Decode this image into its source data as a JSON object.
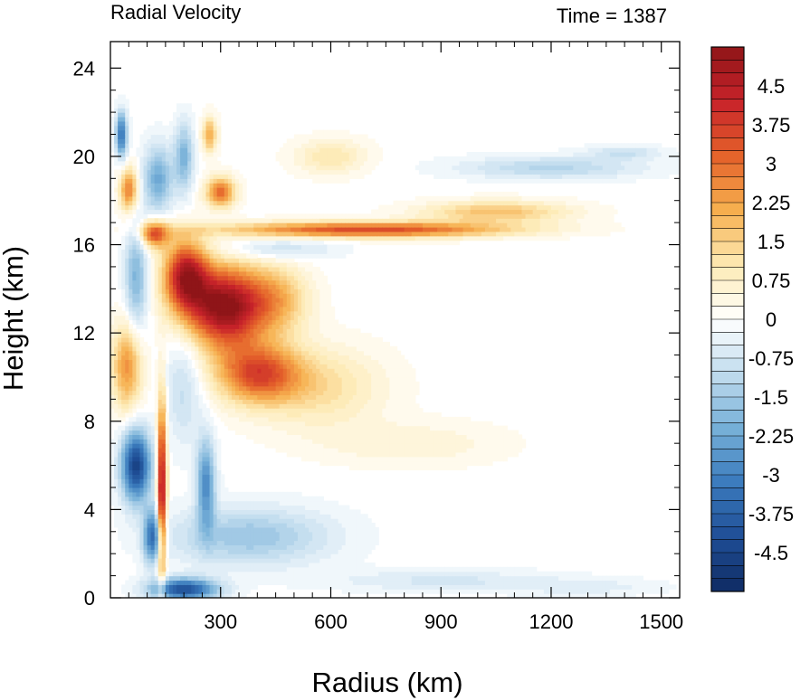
{
  "chart_data": {
    "type": "heatmap",
    "title": "Radial Velocity",
    "subtitle": "Time = 1387",
    "xlabel": "Radius (km)",
    "ylabel": "Height (km)",
    "xlim": [
      0,
      1550
    ],
    "ylim": [
      0,
      25.2
    ],
    "xticks": [
      300,
      600,
      900,
      1200,
      1500
    ],
    "yticks": [
      0,
      4,
      8,
      12,
      16,
      20,
      24
    ],
    "colorbar": {
      "min": -5.25,
      "max": 5.25,
      "step": 0.25,
      "tick_labels": [
        "4.5",
        "3.75",
        "3",
        "2.25",
        "1.5",
        "0.75",
        "0",
        "-0.75",
        "-1.5",
        "-2.25",
        "-3",
        "-3.75",
        "-4.5"
      ],
      "tick_values": [
        4.5,
        3.75,
        3,
        2.25,
        1.5,
        0.75,
        0,
        -0.75,
        -1.5,
        -2.25,
        -3,
        -3.75,
        -4.5
      ],
      "palette": [
        "#0f2b63",
        "#1f4e96",
        "#3b7bbd",
        "#76b0d8",
        "#c1dcee",
        "#ffffff",
        "#fdeab4",
        "#f6b04f",
        "#e5622a",
        "#c8232a",
        "#8f1518"
      ]
    },
    "features": [
      {
        "r": 310,
        "z": 13.2,
        "v": 5.25,
        "sr": 100,
        "sz": 1.8
      },
      {
        "r": 205,
        "z": 14.6,
        "v": 4.5,
        "sr": 60,
        "sz": 1.6
      },
      {
        "r": 140,
        "z": 5.0,
        "v": 5.0,
        "sr": 12,
        "sz": 4.0
      },
      {
        "r": 700,
        "z": 16.7,
        "v": 3.6,
        "sr": 380,
        "sz": 0.35
      },
      {
        "r": 1050,
        "z": 17.5,
        "v": 1.8,
        "sr": 200,
        "sz": 0.5
      },
      {
        "r": 400,
        "z": 10.2,
        "v": 3.2,
        "sr": 110,
        "sz": 1.3
      },
      {
        "r": 560,
        "z": 9.6,
        "v": 1.3,
        "sr": 180,
        "sz": 1.8
      },
      {
        "r": 450,
        "z": 13.5,
        "v": 2.0,
        "sr": 90,
        "sz": 1.6
      },
      {
        "r": 600,
        "z": 20.0,
        "v": 1.1,
        "sr": 100,
        "sz": 0.8
      },
      {
        "r": 820,
        "z": 7.0,
        "v": 0.6,
        "sr": 250,
        "sz": 1.0
      },
      {
        "r": 45,
        "z": 10.5,
        "v": 2.5,
        "sr": 40,
        "sz": 2.0
      },
      {
        "r": 50,
        "z": 18.5,
        "v": 2.8,
        "sr": 25,
        "sz": 1.0
      },
      {
        "r": 120,
        "z": 16.5,
        "v": 3.3,
        "sr": 40,
        "sz": 0.6
      },
      {
        "r": 300,
        "z": 18.4,
        "v": 3.0,
        "sr": 40,
        "sz": 0.7
      },
      {
        "r": 270,
        "z": 21.0,
        "v": 2.2,
        "sr": 20,
        "sz": 0.8
      },
      {
        "r": 70,
        "z": 6.0,
        "v": -4.6,
        "sr": 40,
        "sz": 1.6
      },
      {
        "r": 115,
        "z": 2.8,
        "v": -3.2,
        "sr": 25,
        "sz": 1.2
      },
      {
        "r": 260,
        "z": 5.2,
        "v": -2.8,
        "sr": 25,
        "sz": 2.0
      },
      {
        "r": 380,
        "z": 2.8,
        "v": -1.6,
        "sr": 220,
        "sz": 1.3
      },
      {
        "r": 200,
        "z": 0.4,
        "v": -4.2,
        "sr": 90,
        "sz": 0.5
      },
      {
        "r": 200,
        "z": 9.5,
        "v": -1.0,
        "sr": 50,
        "sz": 2.5
      },
      {
        "r": 70,
        "z": 14.5,
        "v": -2.0,
        "sr": 30,
        "sz": 2.5
      },
      {
        "r": 130,
        "z": 19.0,
        "v": -2.2,
        "sr": 40,
        "sz": 1.5
      },
      {
        "r": 200,
        "z": 20.0,
        "v": -2.0,
        "sr": 25,
        "sz": 1.5
      },
      {
        "r": 30,
        "z": 21.0,
        "v": -3.5,
        "sr": 15,
        "sz": 1.0
      },
      {
        "r": 1200,
        "z": 19.5,
        "v": -1.2,
        "sr": 250,
        "sz": 0.5
      },
      {
        "r": 1400,
        "z": 20.2,
        "v": -0.9,
        "sr": 100,
        "sz": 0.3
      },
      {
        "r": 450,
        "z": 15.8,
        "v": -1.0,
        "sr": 150,
        "sz": 0.5
      },
      {
        "r": 900,
        "z": 0.8,
        "v": -0.7,
        "sr": 300,
        "sz": 0.5
      },
      {
        "r": 1300,
        "z": 0.5,
        "v": -0.5,
        "sr": 200,
        "sz": 0.4
      }
    ]
  }
}
